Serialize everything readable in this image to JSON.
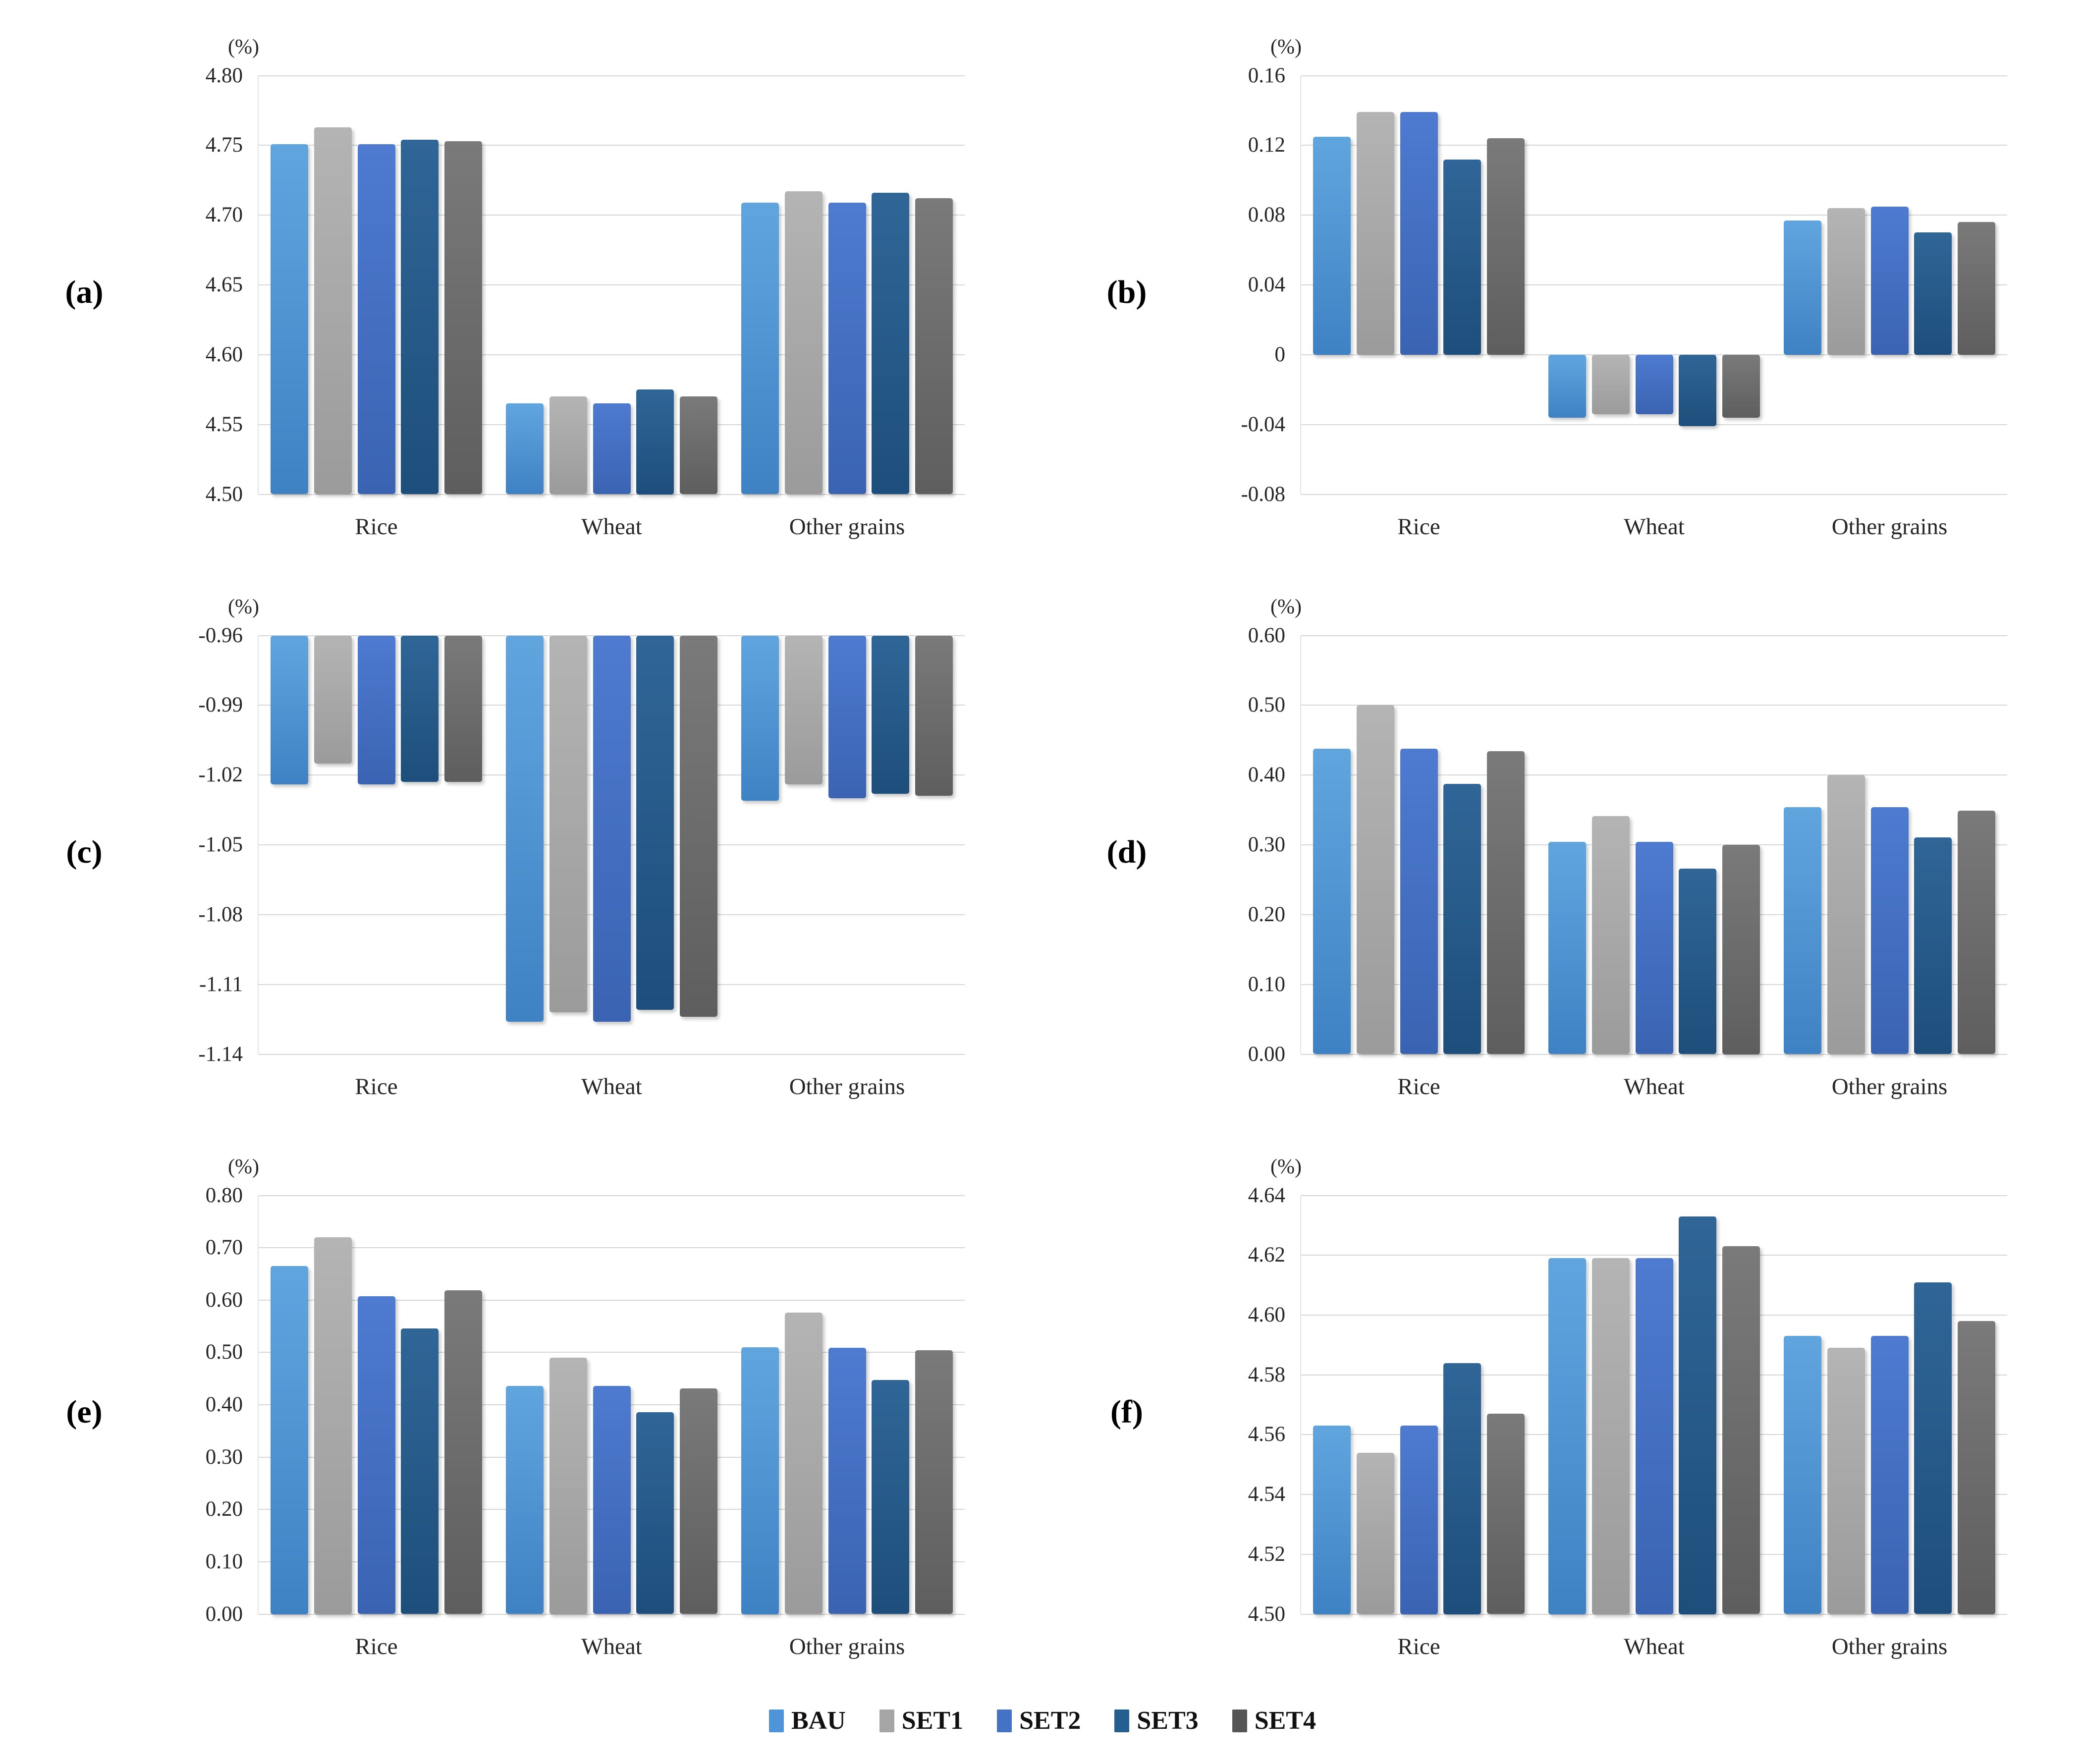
{
  "figure": {
    "unit_label": "(%)"
  },
  "legend": {
    "items": [
      {
        "name": "BAU",
        "color": "#4d94d8"
      },
      {
        "name": "SET1",
        "color": "#a6a6a6"
      },
      {
        "name": "SET2",
        "color": "#4472c4"
      },
      {
        "name": "SET3",
        "color": "#255e91"
      },
      {
        "name": "SET4",
        "color": "#555555"
      }
    ]
  },
  "series_styles": [
    {
      "name": "BAU",
      "top": "#61a5df",
      "bottom": "#3e82c4"
    },
    {
      "name": "SET1",
      "top": "#b4b4b4",
      "bottom": "#9b9b9b"
    },
    {
      "name": "SET2",
      "top": "#4e7bd0",
      "bottom": "#3a63b2"
    },
    {
      "name": "SET3",
      "top": "#2f6697",
      "bottom": "#1e4e7b"
    },
    {
      "name": "SET4",
      "top": "#7a7a7a",
      "bottom": "#5e5e5e"
    }
  ],
  "chart_data": [
    {
      "id": "a",
      "label": "(a)",
      "type": "bar",
      "unit": "(%)",
      "categories": [
        "Rice",
        "Wheat",
        "Other grains"
      ],
      "ylim": [
        4.5,
        4.8
      ],
      "yticks": [
        {
          "v": 4.8,
          "label": "4.80"
        },
        {
          "v": 4.75,
          "label": "4.75"
        },
        {
          "v": 4.7,
          "label": "4.70"
        },
        {
          "v": 4.65,
          "label": "4.65"
        },
        {
          "v": 4.6,
          "label": "4.60"
        },
        {
          "v": 4.55,
          "label": "4.55"
        },
        {
          "v": 4.5,
          "label": "4.50"
        }
      ],
      "series": [
        {
          "name": "BAU",
          "values": [
            4.751,
            4.565,
            4.709
          ]
        },
        {
          "name": "SET1",
          "values": [
            4.763,
            4.57,
            4.717
          ]
        },
        {
          "name": "SET2",
          "values": [
            4.751,
            4.565,
            4.709
          ]
        },
        {
          "name": "SET3",
          "values": [
            4.754,
            4.575,
            4.716
          ]
        },
        {
          "name": "SET4",
          "values": [
            4.753,
            4.57,
            4.712
          ]
        }
      ]
    },
    {
      "id": "b",
      "label": "(b)",
      "type": "bar",
      "unit": "(%)",
      "categories": [
        "Rice",
        "Wheat",
        "Other grains"
      ],
      "ylim": [
        -0.08,
        0.16
      ],
      "yticks": [
        {
          "v": 0.16,
          "label": "0.16"
        },
        {
          "v": 0.12,
          "label": "0.12"
        },
        {
          "v": 0.08,
          "label": "0.08"
        },
        {
          "v": 0.04,
          "label": "0.04"
        },
        {
          "v": 0.0,
          "label": "0"
        },
        {
          "v": -0.04,
          "label": "-0.04"
        },
        {
          "v": -0.08,
          "label": "-0.08"
        }
      ],
      "series": [
        {
          "name": "BAU",
          "values": [
            0.125,
            -0.036,
            0.077
          ]
        },
        {
          "name": "SET1",
          "values": [
            0.139,
            -0.034,
            0.084
          ]
        },
        {
          "name": "SET2",
          "values": [
            0.139,
            -0.034,
            0.085
          ]
        },
        {
          "name": "SET3",
          "values": [
            0.112,
            -0.041,
            0.07
          ]
        },
        {
          "name": "SET4",
          "values": [
            0.124,
            -0.036,
            0.076
          ]
        }
      ]
    },
    {
      "id": "c",
      "label": "(c)",
      "type": "bar",
      "unit": "(%)",
      "categories": [
        "Rice",
        "Wheat",
        "Other grains"
      ],
      "ylim": [
        -1.14,
        -0.96
      ],
      "yticks": [
        {
          "v": -0.96,
          "label": "-0.96"
        },
        {
          "v": -0.99,
          "label": "-0.99"
        },
        {
          "v": -1.02,
          "label": "-1.02"
        },
        {
          "v": -1.05,
          "label": "-1.05"
        },
        {
          "v": -1.08,
          "label": "-1.08"
        },
        {
          "v": -1.11,
          "label": "-1.11"
        },
        {
          "v": -1.14,
          "label": "-1.14"
        }
      ],
      "series": [
        {
          "name": "BAU",
          "values": [
            -1.024,
            -1.126,
            -1.031
          ]
        },
        {
          "name": "SET1",
          "values": [
            -1.015,
            -1.122,
            -1.024
          ]
        },
        {
          "name": "SET2",
          "values": [
            -1.024,
            -1.126,
            -1.03
          ]
        },
        {
          "name": "SET3",
          "values": [
            -1.023,
            -1.121,
            -1.028
          ]
        },
        {
          "name": "SET4",
          "values": [
            -1.023,
            -1.124,
            -1.029
          ]
        }
      ]
    },
    {
      "id": "d",
      "label": "(d)",
      "type": "bar",
      "unit": "(%)",
      "categories": [
        "Rice",
        "Wheat",
        "Other grains"
      ],
      "ylim": [
        0.0,
        0.6
      ],
      "yticks": [
        {
          "v": 0.6,
          "label": "0.60"
        },
        {
          "v": 0.5,
          "label": "0.50"
        },
        {
          "v": 0.4,
          "label": "0.40"
        },
        {
          "v": 0.3,
          "label": "0.30"
        },
        {
          "v": 0.2,
          "label": "0.20"
        },
        {
          "v": 0.1,
          "label": "0.10"
        },
        {
          "v": 0.0,
          "label": "0.00"
        }
      ],
      "series": [
        {
          "name": "BAU",
          "values": [
            0.438,
            0.304,
            0.354
          ]
        },
        {
          "name": "SET1",
          "values": [
            0.5,
            0.341,
            0.4
          ]
        },
        {
          "name": "SET2",
          "values": [
            0.438,
            0.304,
            0.354
          ]
        },
        {
          "name": "SET3",
          "values": [
            0.387,
            0.266,
            0.311
          ]
        },
        {
          "name": "SET4",
          "values": [
            0.434,
            0.3,
            0.349
          ]
        }
      ]
    },
    {
      "id": "e",
      "label": "(e)",
      "type": "bar",
      "unit": "(%)",
      "categories": [
        "Rice",
        "Wheat",
        "Other grains"
      ],
      "ylim": [
        0.0,
        0.8
      ],
      "yticks": [
        {
          "v": 0.8,
          "label": "0.80"
        },
        {
          "v": 0.7,
          "label": "0.70"
        },
        {
          "v": 0.6,
          "label": "0.60"
        },
        {
          "v": 0.5,
          "label": "0.50"
        },
        {
          "v": 0.4,
          "label": "0.40"
        },
        {
          "v": 0.3,
          "label": "0.30"
        },
        {
          "v": 0.2,
          "label": "0.20"
        },
        {
          "v": 0.1,
          "label": "0.10"
        },
        {
          "v": 0.0,
          "label": "0.00"
        }
      ],
      "series": [
        {
          "name": "BAU",
          "values": [
            0.665,
            0.436,
            0.51
          ]
        },
        {
          "name": "SET1",
          "values": [
            0.72,
            0.49,
            0.576
          ]
        },
        {
          "name": "SET2",
          "values": [
            0.607,
            0.436,
            0.509
          ]
        },
        {
          "name": "SET3",
          "values": [
            0.546,
            0.386,
            0.447
          ]
        },
        {
          "name": "SET4",
          "values": [
            0.619,
            0.431,
            0.504
          ]
        }
      ]
    },
    {
      "id": "f",
      "label": "(f)",
      "type": "bar",
      "unit": "(%)",
      "categories": [
        "Rice",
        "Wheat",
        "Other grains"
      ],
      "ylim": [
        4.5,
        4.64
      ],
      "yticks": [
        {
          "v": 4.64,
          "label": "4.64"
        },
        {
          "v": 4.62,
          "label": "4.62"
        },
        {
          "v": 4.6,
          "label": "4.60"
        },
        {
          "v": 4.58,
          "label": "4.58"
        },
        {
          "v": 4.56,
          "label": "4.56"
        },
        {
          "v": 4.54,
          "label": "4.54"
        },
        {
          "v": 4.52,
          "label": "4.52"
        },
        {
          "v": 4.5,
          "label": "4.50"
        }
      ],
      "series": [
        {
          "name": "BAU",
          "values": [
            4.563,
            4.619,
            4.593
          ]
        },
        {
          "name": "SET1",
          "values": [
            4.554,
            4.619,
            4.589
          ]
        },
        {
          "name": "SET2",
          "values": [
            4.563,
            4.619,
            4.593
          ]
        },
        {
          "name": "SET3",
          "values": [
            4.584,
            4.633,
            4.611
          ]
        },
        {
          "name": "SET4",
          "values": [
            4.567,
            4.623,
            4.598
          ]
        }
      ]
    }
  ]
}
